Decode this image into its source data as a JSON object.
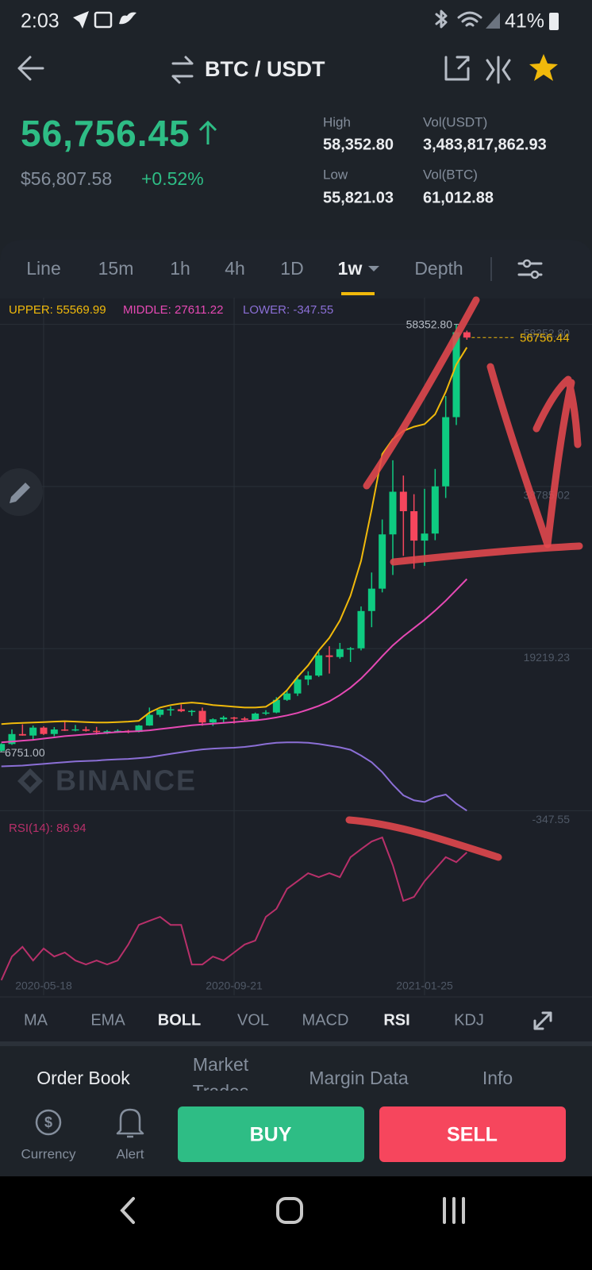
{
  "status_bar": {
    "time": "2:03",
    "battery": "41%"
  },
  "header": {
    "pair": "BTC / USDT"
  },
  "ticker": {
    "price": "56,756.45",
    "fiat": "$56,807.58",
    "change": "+0.52%",
    "stats": [
      {
        "label": "High",
        "value": "58,352.80"
      },
      {
        "label": "Vol(USDT)",
        "value": "3,483,817,862.93"
      },
      {
        "label": "Low",
        "value": "55,821.03"
      },
      {
        "label": "Vol(BTC)",
        "value": "61,012.88"
      }
    ]
  },
  "intervals": [
    "Line",
    "15m",
    "1h",
    "4h",
    "1D",
    "1w",
    "Depth"
  ],
  "chart_data": {
    "type": "candlestick",
    "watermark": "BINANCE",
    "up_color": "#0ecb81",
    "down_color": "#f6465d",
    "categories": [
      null,
      null,
      null,
      null,
      "2020-05-18",
      null,
      null,
      null,
      null,
      null,
      null,
      null,
      null,
      null,
      null,
      null,
      null,
      null,
      null,
      null,
      null,
      null,
      "2020-09-21",
      null,
      null,
      null,
      null,
      null,
      null,
      null,
      null,
      null,
      null,
      null,
      null,
      null,
      null,
      null,
      null,
      null,
      "2021-01-25",
      null,
      null,
      null,
      null
    ],
    "open": [
      6880,
      7700,
      8900,
      8720,
      9680,
      8910,
      9450,
      9380,
      9470,
      9290,
      9140,
      9240,
      9300,
      9160,
      9930,
      11220,
      11850,
      11900,
      11650,
      11700,
      10300,
      10680,
      10900,
      10780,
      10620,
      11370,
      11500,
      13030,
      13800,
      15480,
      15960,
      18400,
      18200,
      19150,
      19250,
      23750,
      26450,
      33000,
      38150,
      35800,
      32250,
      33100,
      38800,
      47150,
      57400
    ],
    "high": [
      7790,
      9460,
      10070,
      9930,
      9840,
      9740,
      10430,
      10000,
      9800,
      9770,
      9380,
      9470,
      9400,
      9995,
      12100,
      11900,
      12250,
      12480,
      11810,
      12090,
      10800,
      11100,
      10990,
      10960,
      11490,
      11780,
      13350,
      14100,
      15970,
      16480,
      18800,
      19500,
      19900,
      19400,
      24300,
      28400,
      34800,
      41950,
      40100,
      37850,
      38500,
      40900,
      49700,
      58352.8,
      57600
    ],
    "low": [
      6751,
      7600,
      8700,
      8110,
      8800,
      8630,
      9270,
      9230,
      9200,
      8830,
      8900,
      9050,
      9000,
      9100,
      9900,
      10950,
      11100,
      11550,
      11100,
      9900,
      9880,
      10200,
      10160,
      10500,
      10550,
      11200,
      11420,
      12900,
      13500,
      14800,
      15800,
      16200,
      18000,
      17600,
      19000,
      21800,
      26000,
      28100,
      30400,
      28850,
      29200,
      32300,
      37400,
      46200,
      56500
    ],
    "close": [
      7700,
      8900,
      8720,
      9680,
      8910,
      9450,
      9380,
      9470,
      9290,
      9140,
      9240,
      9300,
      9160,
      9930,
      11220,
      11850,
      11900,
      11650,
      11700,
      10300,
      10680,
      10900,
      10780,
      10620,
      11370,
      11500,
      13030,
      13800,
      15480,
      15960,
      18400,
      18200,
      19150,
      19250,
      23750,
      26450,
      33000,
      38150,
      35800,
      32250,
      33100,
      38800,
      47150,
      57400,
      56756.44
    ],
    "ylim": [
      -700,
      58700
    ],
    "yticks": [
      {
        "value": 58352.8,
        "label": "58352.80"
      },
      38785.02,
      19219.23,
      -347.55
    ],
    "annotations": [
      {
        "value": 58352.8,
        "label": "58352.80"
      },
      {
        "value": 56756.44,
        "label": "56756.44"
      },
      {
        "value": 6751,
        "label": "6751.00"
      }
    ],
    "boll": [
      {
        "label": "UPPER: 55569.99",
        "color": "#f0b90b",
        "values": [
          10100,
          10200,
          10250,
          10300,
          10350,
          10400,
          10450,
          10400,
          10350,
          10300,
          10300,
          10350,
          10400,
          10500,
          11500,
          12100,
          12400,
          12600,
          12700,
          12600,
          12400,
          12300,
          12200,
          12100,
          12100,
          12200,
          13000,
          14200,
          15800,
          17200,
          19000,
          20500,
          22600,
          25600,
          29800,
          36000,
          42700,
          44500,
          45500,
          46000,
          46300,
          47500,
          50200,
          53500,
          55569.99
        ]
      },
      {
        "label": "MIDDLE: 27611.22",
        "color": "#e649b4",
        "values": [
          7900,
          8000,
          8100,
          8200,
          8350,
          8500,
          8650,
          8750,
          8850,
          8950,
          9050,
          9150,
          9200,
          9250,
          9350,
          9500,
          9650,
          9800,
          9950,
          10050,
          10150,
          10250,
          10350,
          10450,
          10550,
          10700,
          10900,
          11150,
          11450,
          11850,
          12300,
          12850,
          13600,
          14500,
          15600,
          16900,
          18300,
          19600,
          20700,
          21700,
          22700,
          23800,
          25000,
          26300,
          27611.22
        ]
      },
      {
        "label": "LOWER: -347.55",
        "color": "#8b6fd6",
        "values": [
          5000,
          5050,
          5100,
          5200,
          5300,
          5400,
          5500,
          5600,
          5650,
          5700,
          5800,
          5850,
          5900,
          6000,
          6100,
          6300,
          6500,
          6700,
          6900,
          7050,
          7150,
          7200,
          7250,
          7350,
          7500,
          7700,
          7850,
          7900,
          7900,
          7850,
          7700,
          7500,
          7300,
          7000,
          6300,
          5500,
          4300,
          2800,
          1500,
          900,
          700,
          1300,
          1600,
          500,
          -347.55
        ]
      }
    ],
    "rsi": {
      "label": "RSI(14): 86.94",
      "color": "#b8306a",
      "ylim": [
        45,
        95
      ],
      "values": [
        48.6,
        55.7,
        58.6,
        54.5,
        58.1,
        55.7,
        56.9,
        54.5,
        53.3,
        54.5,
        53.3,
        54.5,
        59.3,
        65.2,
        66.4,
        67.6,
        65.2,
        65.2,
        53.3,
        53.3,
        55.7,
        54.5,
        56.9,
        59.3,
        60.5,
        67.6,
        70.0,
        76.0,
        78.3,
        80.7,
        79.5,
        80.7,
        79.5,
        85.5,
        87.9,
        90.2,
        91.4,
        83.1,
        72.4,
        73.6,
        78.3,
        81.9,
        85.5,
        84.0,
        86.94
      ]
    }
  },
  "indicators": [
    "MA",
    "EMA",
    "BOLL",
    "VOL",
    "MACD",
    "RSI",
    "KDJ"
  ],
  "sections": [
    "Order Book",
    "Market Trades",
    "Margin Data",
    "Info"
  ],
  "bottom": {
    "currency": "Currency",
    "alert": "Alert",
    "buy": "BUY",
    "sell": "SELL"
  }
}
